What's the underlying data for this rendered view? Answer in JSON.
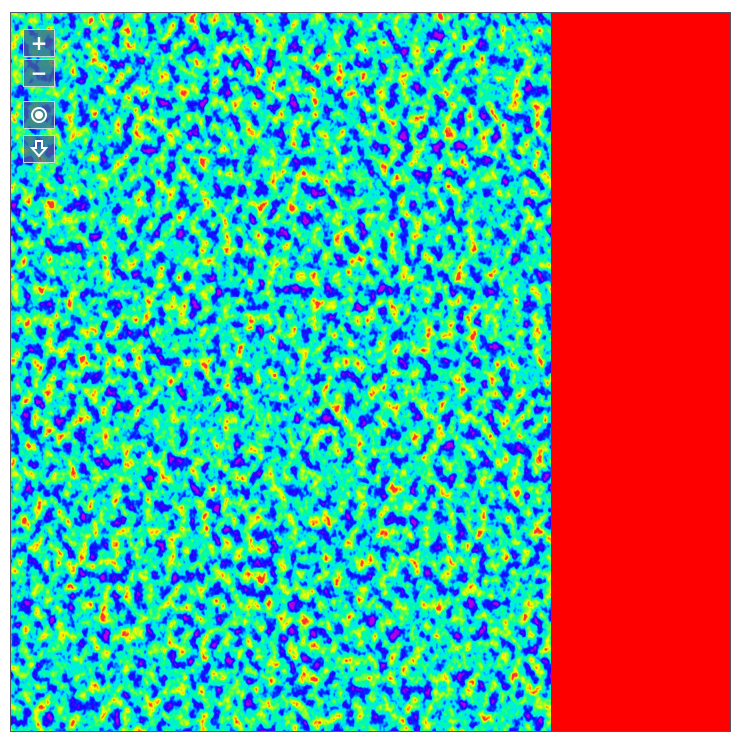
{
  "controls": {
    "zoom_in": "+",
    "zoom_out": "−"
  }
}
